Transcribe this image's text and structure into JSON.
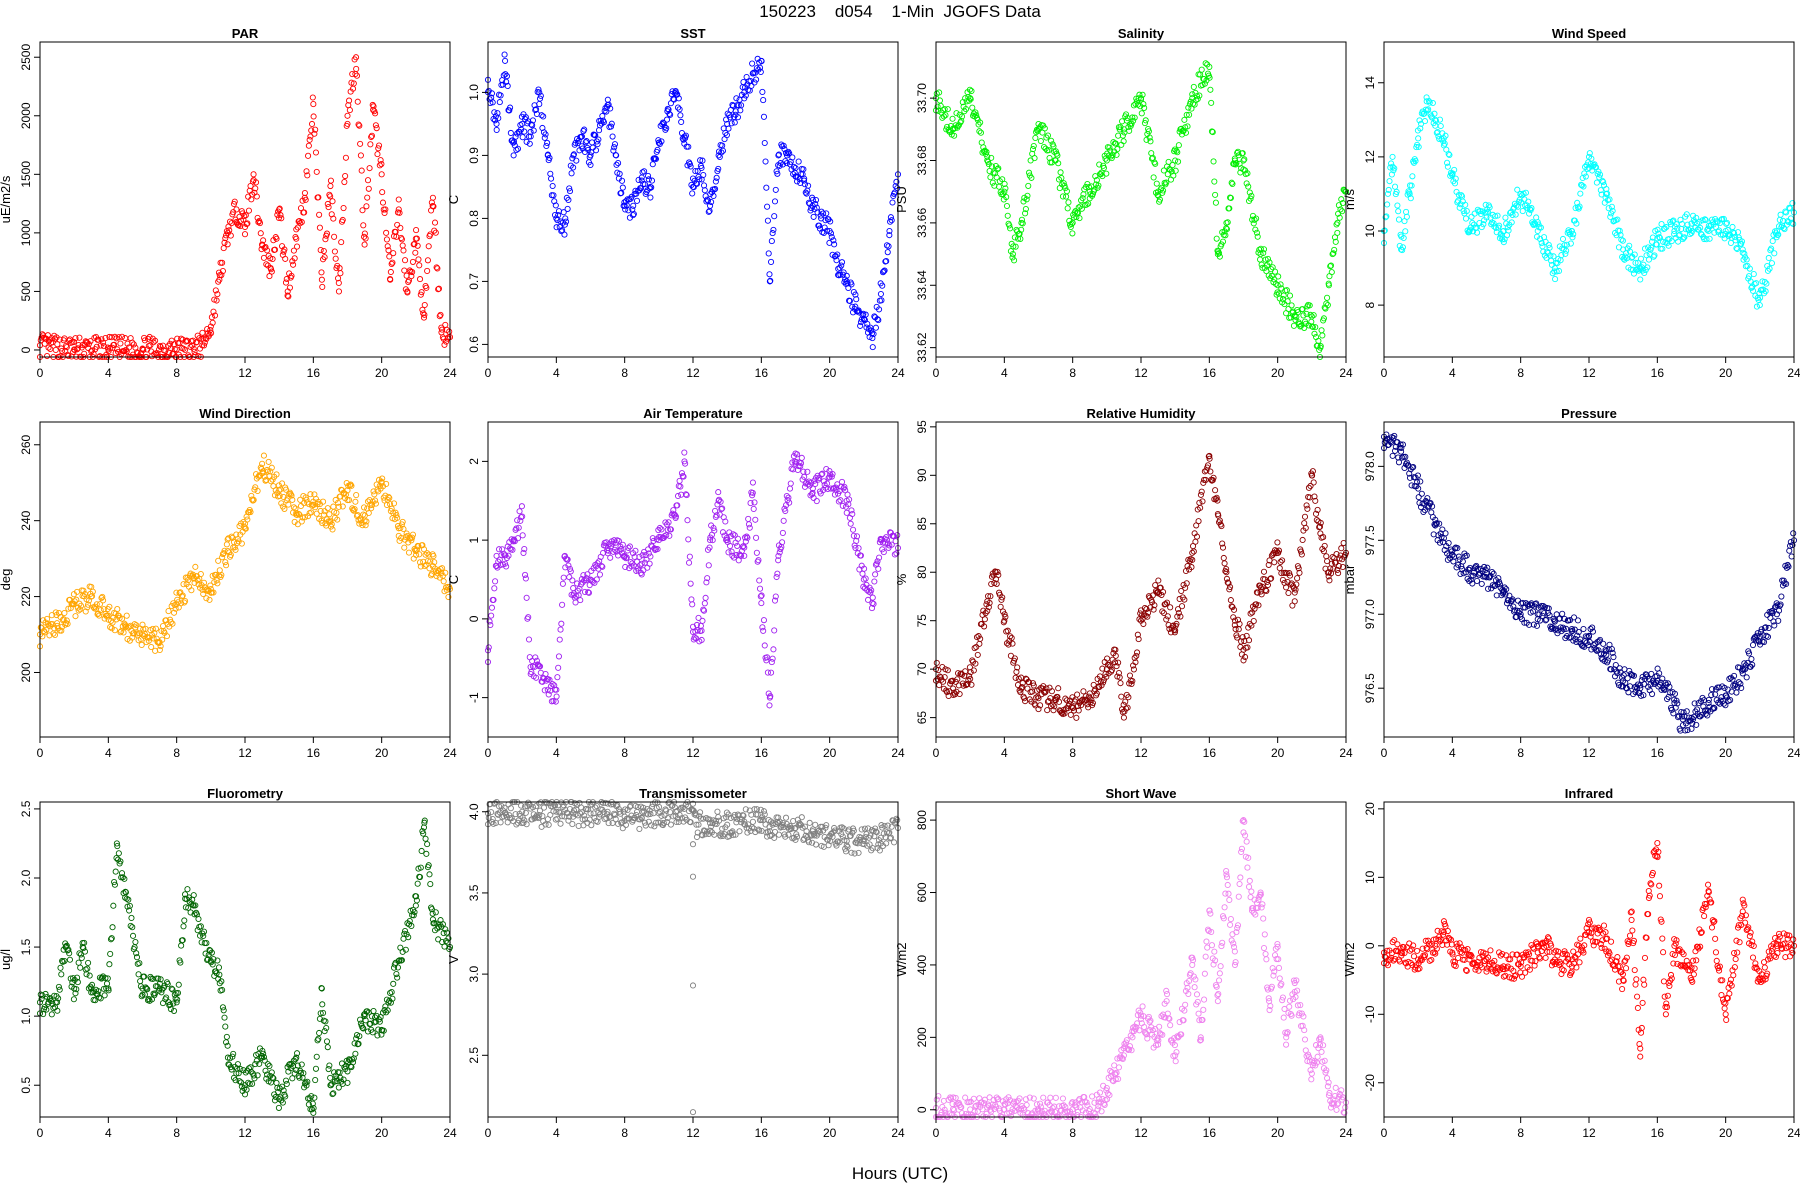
{
  "figure": {
    "title": "150223    d054    1-Min  JGOFS Data",
    "xlabel": "Hours (UTC)"
  },
  "x_ticks": [
    "0",
    "4",
    "8",
    "12",
    "16",
    "20",
    "24"
  ],
  "chart_data": [
    {
      "type": "scatter",
      "title": "PAR",
      "ylabel": "uE/m2/s",
      "color": "#ff0000",
      "xlim": [
        0,
        24
      ],
      "ylim": [
        -60,
        2630
      ],
      "yticks": [
        0,
        500,
        1000,
        1500,
        2000,
        2500
      ],
      "series": [
        {
          "x": [
            0,
            0.5,
            2,
            4,
            6,
            8,
            9,
            9.5,
            10,
            10.5,
            11,
            11.5,
            12,
            12.5,
            13,
            13.5,
            14,
            14.5,
            15,
            15.5,
            16,
            16.5,
            17,
            17.5,
            18,
            18.5,
            19,
            19.5,
            20,
            20.5,
            21,
            21.5,
            22,
            22.5,
            23,
            23.5,
            24
          ],
          "y": [
            40,
            20,
            5,
            5,
            5,
            5,
            10,
            40,
            200,
            600,
            1000,
            1200,
            1050,
            1500,
            900,
            700,
            1200,
            500,
            950,
            1300,
            2100,
            600,
            1400,
            500,
            2000,
            2500,
            900,
            2050,
            1500,
            600,
            1200,
            500,
            950,
            300,
            1300,
            150,
            110
          ]
        }
      ]
    },
    {
      "type": "scatter",
      "title": "SST",
      "ylabel": "C",
      "color": "#0000ff",
      "xlim": [
        0,
        24
      ],
      "ylim": [
        0.58,
        1.08
      ],
      "yticks": [
        0.6,
        0.7,
        0.8,
        0.9,
        1.0
      ],
      "ytick_labels": [
        "0.6",
        "0.7",
        "0.8",
        "0.9",
        "1.0"
      ],
      "series": [
        {
          "x": [
            0,
            0.5,
            1,
            1.5,
            2,
            2.5,
            3,
            3.5,
            4,
            4.5,
            5,
            5.5,
            6,
            6.5,
            7,
            7.5,
            8,
            8.5,
            9,
            9.5,
            10,
            10.5,
            11,
            11.5,
            12,
            12.5,
            13,
            13.5,
            14,
            14.5,
            15,
            15.5,
            16,
            16.5,
            17,
            17.5,
            18,
            18.5,
            19,
            19.5,
            20,
            20.5,
            21,
            21.5,
            22,
            22.5,
            23,
            23.5,
            24
          ],
          "y": [
            1.02,
            0.95,
            1.05,
            0.9,
            0.95,
            0.93,
            1.0,
            0.9,
            0.8,
            0.79,
            0.9,
            0.93,
            0.9,
            0.94,
            0.98,
            0.9,
            0.82,
            0.82,
            0.86,
            0.85,
            0.92,
            0.97,
            1.0,
            0.93,
            0.85,
            0.88,
            0.82,
            0.9,
            0.95,
            0.97,
            1.0,
            1.03,
            1.05,
            0.7,
            0.9,
            0.9,
            0.88,
            0.86,
            0.82,
            0.8,
            0.78,
            0.72,
            0.7,
            0.66,
            0.64,
            0.61,
            0.68,
            0.78,
            0.87
          ]
        }
      ]
    },
    {
      "type": "scatter",
      "title": "Salinity",
      "ylabel": "PSU",
      "color": "#00ee00",
      "xlim": [
        0,
        24
      ],
      "ylim": [
        33.617,
        33.718
      ],
      "yticks": [
        33.62,
        33.64,
        33.66,
        33.68,
        33.7
      ],
      "ytick_labels": [
        "33.62",
        "33.64",
        "33.66",
        "33.68",
        "33.70"
      ],
      "series": [
        {
          "x": [
            0,
            1,
            2,
            3,
            4,
            4.5,
            5,
            6,
            7,
            8,
            9,
            10,
            11,
            12,
            13,
            14,
            15,
            16,
            16.5,
            17,
            17.5,
            18,
            19,
            20,
            21,
            22,
            22.5,
            23,
            23.5,
            24
          ],
          "y": [
            33.7,
            33.69,
            33.7,
            33.68,
            33.67,
            33.65,
            33.66,
            33.69,
            33.68,
            33.66,
            33.67,
            33.68,
            33.69,
            33.7,
            33.67,
            33.68,
            33.7,
            33.71,
            33.65,
            33.66,
            33.68,
            33.68,
            33.65,
            33.64,
            33.63,
            33.63,
            33.62,
            33.64,
            33.66,
            33.67
          ]
        }
      ]
    },
    {
      "type": "scatter",
      "title": "Wind Speed",
      "ylabel": "m/s",
      "color": "#00ffff",
      "xlim": [
        0,
        24
      ],
      "ylim": [
        6.6,
        15.1
      ],
      "yticks": [
        8,
        10,
        12,
        14
      ],
      "series": [
        {
          "x": [
            0,
            0.5,
            1,
            1.5,
            2,
            2.5,
            3,
            3.5,
            4,
            5,
            6,
            7,
            8,
            9,
            10,
            11,
            12,
            13,
            14,
            15,
            16,
            17,
            18,
            19,
            20,
            21,
            22,
            23,
            24
          ],
          "y": [
            10,
            12,
            9.5,
            11,
            12.5,
            13.5,
            13,
            12.5,
            11.5,
            10,
            10.5,
            10,
            11,
            10,
            9,
            10,
            12,
            11,
            9.5,
            9,
            9.8,
            10,
            10.2,
            10,
            10,
            9.5,
            8,
            10,
            10.5
          ]
        }
      ]
    },
    {
      "type": "scatter",
      "title": "Wind Direction",
      "ylabel": "deg",
      "color": "#ffa500",
      "xlim": [
        0,
        24
      ],
      "ylim": [
        183,
        266
      ],
      "yticks": [
        200,
        220,
        240,
        260
      ],
      "series": [
        {
          "x": [
            0,
            1,
            2,
            3,
            4,
            5,
            6,
            7,
            8,
            9,
            10,
            11,
            12,
            13,
            14,
            15,
            16,
            17,
            18,
            19,
            20,
            21,
            22,
            23,
            24
          ],
          "y": [
            210,
            213,
            218,
            220,
            215,
            212,
            210,
            208,
            218,
            225,
            222,
            232,
            238,
            255,
            248,
            242,
            245,
            240,
            248,
            240,
            250,
            238,
            232,
            228,
            222
          ]
        }
      ]
    },
    {
      "type": "scatter",
      "title": "Air Temperature",
      "ylabel": "C",
      "color": "#a020f0",
      "xlim": [
        0,
        24
      ],
      "ylim": [
        -1.5,
        2.5
      ],
      "yticks": [
        -1,
        0,
        1,
        2
      ],
      "series": [
        {
          "x": [
            0,
            0.5,
            1,
            1.5,
            2,
            2.5,
            3,
            3.5,
            4,
            4.5,
            5,
            6,
            7,
            8,
            9,
            10,
            11,
            11.5,
            12,
            12.5,
            13,
            13.5,
            14,
            15,
            15.5,
            16,
            16.5,
            17,
            18,
            19,
            20,
            21,
            22,
            22.5,
            23,
            24
          ],
          "y": [
            -0.4,
            0.8,
            0.7,
            1.0,
            1.3,
            -0.7,
            -0.6,
            -0.9,
            -0.9,
            0.8,
            0.3,
            0.5,
            0.9,
            0.8,
            0.7,
            1.0,
            1.3,
            2.0,
            -0.1,
            -0.15,
            1.0,
            1.5,
            1.0,
            0.8,
            1.6,
            0.2,
            -1.0,
            0.8,
            2.1,
            1.6,
            1.8,
            1.5,
            0.5,
            0.2,
            1.0,
            0.9
          ]
        }
      ]
    },
    {
      "type": "scatter",
      "title": "Relative Humidity",
      "ylabel": "%",
      "color": "#8b0000",
      "xlim": [
        0,
        24
      ],
      "ylim": [
        63,
        95.5
      ],
      "yticks": [
        65,
        70,
        75,
        80,
        85,
        90,
        95
      ],
      "series": [
        {
          "x": [
            0,
            1,
            2,
            3,
            3.5,
            4,
            5,
            6,
            7,
            8,
            9,
            10,
            10.5,
            11,
            12,
            13,
            14,
            15,
            16,
            16.5,
            17,
            17.5,
            18,
            19,
            20,
            21,
            22,
            22.5,
            23,
            24
          ],
          "y": [
            70,
            68,
            69,
            77,
            80,
            75,
            68,
            67,
            67,
            66,
            67,
            70,
            72,
            65,
            75,
            78,
            74,
            82,
            92,
            86,
            80,
            75,
            72,
            78,
            82,
            77,
            90,
            84,
            80,
            82
          ]
        }
      ]
    },
    {
      "type": "scatter",
      "title": "Pressure",
      "ylabel": "mbar",
      "color": "#000080",
      "xlim": [
        0,
        24
      ],
      "ylim": [
        976.17,
        978.3
      ],
      "yticks": [
        976.5,
        977.0,
        977.5,
        978.0
      ],
      "ytick_labels": [
        "976.5",
        "977.0",
        "977.5",
        "978.0"
      ],
      "series": [
        {
          "x": [
            0,
            1,
            2,
            3,
            4,
            5,
            6,
            7,
            8,
            9,
            10,
            11,
            12,
            13,
            14,
            15,
            16,
            17,
            17.5,
            18,
            19,
            20,
            21,
            22,
            23,
            24
          ],
          "y": [
            978.2,
            978.1,
            977.85,
            977.6,
            977.4,
            977.3,
            977.25,
            977.15,
            977.0,
            977.0,
            976.95,
            976.9,
            976.85,
            976.75,
            976.55,
            976.5,
            976.55,
            976.4,
            976.25,
            976.3,
            976.4,
            976.45,
            976.6,
            976.85,
            977.0,
            977.5
          ]
        }
      ]
    },
    {
      "type": "scatter",
      "title": "Fluorometry",
      "ylabel": "ug/l",
      "color": "#006400",
      "xlim": [
        0,
        24
      ],
      "ylim": [
        0.27,
        2.55
      ],
      "yticks": [
        0.5,
        1.0,
        1.5,
        2.0,
        2.5
      ],
      "ytick_labels": [
        "0.5",
        "1.0",
        "1.5",
        "2.0",
        "2.5"
      ],
      "series": [
        {
          "x": [
            0,
            1,
            1.5,
            2,
            2.5,
            3,
            4,
            4.5,
            5,
            6,
            7,
            8,
            8.5,
            9,
            10,
            10.5,
            11,
            12,
            13,
            14,
            15,
            16,
            16.5,
            17,
            18,
            19,
            20,
            21,
            22,
            22.5,
            23,
            24
          ],
          "y": [
            1.1,
            1.1,
            1.5,
            1.2,
            1.5,
            1.2,
            1.2,
            2.25,
            1.9,
            1.2,
            1.2,
            1.1,
            1.85,
            1.8,
            1.4,
            1.3,
            0.7,
            0.5,
            0.7,
            0.4,
            0.7,
            0.3,
            1.2,
            0.5,
            0.6,
            1.0,
            0.9,
            1.4,
            1.8,
            2.4,
            1.7,
            1.5
          ]
        }
      ]
    },
    {
      "type": "scatter",
      "title": "Transmissometer",
      "ylabel": "V",
      "color": "#808080",
      "xlim": [
        0,
        24
      ],
      "ylim": [
        2.12,
        4.06
      ],
      "yticks": [
        2.5,
        3.0,
        3.5,
        4.0
      ],
      "ytick_labels": [
        "2.5",
        "3.0",
        "3.5",
        "4.0"
      ],
      "series": [
        {
          "x": [
            0,
            1,
            2,
            3,
            4,
            5,
            6,
            7,
            8,
            9,
            10,
            11,
            12,
            12.2,
            13,
            14,
            15,
            16,
            16.5,
            17,
            18,
            19,
            20,
            21,
            22,
            23,
            24
          ],
          "y": [
            3.99,
            3.99,
            4.0,
            3.98,
            4.0,
            3.99,
            3.99,
            4.0,
            3.97,
            3.96,
            3.99,
            4.0,
            4.01,
            3.92,
            3.93,
            3.92,
            3.94,
            3.95,
            3.88,
            3.93,
            3.9,
            3.88,
            3.85,
            3.82,
            3.82,
            3.84,
            3.9
          ]
        },
        {
          "x": [
            12,
            12,
            12,
            12
          ],
          "y": [
            3.8,
            3.6,
            2.93,
            2.15
          ]
        }
      ]
    },
    {
      "type": "scatter",
      "title": "Short Wave",
      "ylabel": "W/m2",
      "color": "#ee82ee",
      "xlim": [
        0,
        24
      ],
      "ylim": [
        -20,
        850
      ],
      "yticks": [
        0,
        200,
        400,
        600,
        800
      ],
      "series": [
        {
          "x": [
            0,
            1,
            2,
            4,
            6,
            8,
            9,
            9.5,
            10,
            10.5,
            11,
            11.5,
            12,
            12.5,
            13,
            13.5,
            14,
            15,
            15.5,
            16,
            16.5,
            17,
            17.5,
            18,
            18.5,
            19,
            19.5,
            20,
            20.5,
            21,
            22,
            22.5,
            23,
            24
          ],
          "y": [
            5,
            2,
            1,
            1,
            1,
            1,
            2,
            10,
            60,
            100,
            150,
            200,
            260,
            220,
            180,
            300,
            150,
            400,
            200,
            550,
            300,
            650,
            400,
            800,
            550,
            600,
            300,
            450,
            200,
            350,
            100,
            200,
            40,
            20
          ]
        }
      ]
    },
    {
      "type": "scatter",
      "title": "Infrared",
      "ylabel": "W/m2",
      "color": "#ff0000",
      "xlim": [
        0,
        24
      ],
      "ylim": [
        -25,
        21
      ],
      "yticks": [
        -20,
        -10,
        0,
        10,
        20
      ],
      "series": [
        {
          "x": [
            0,
            1,
            2,
            3,
            3.5,
            4,
            5,
            6,
            7,
            8,
            9,
            9.5,
            10,
            11,
            12,
            13,
            14,
            14.5,
            15,
            15.5,
            16,
            16.5,
            17,
            18,
            19,
            20,
            21,
            22,
            23,
            24
          ],
          "y": [
            -1,
            -1,
            -2,
            0,
            2,
            -1,
            -2,
            -2,
            -3,
            -3,
            -1,
            0,
            -2,
            -3,
            2,
            1,
            -5,
            5,
            -15,
            8,
            15,
            -10,
            0,
            -5,
            8,
            -10,
            5,
            -5,
            0,
            0
          ]
        }
      ]
    }
  ]
}
